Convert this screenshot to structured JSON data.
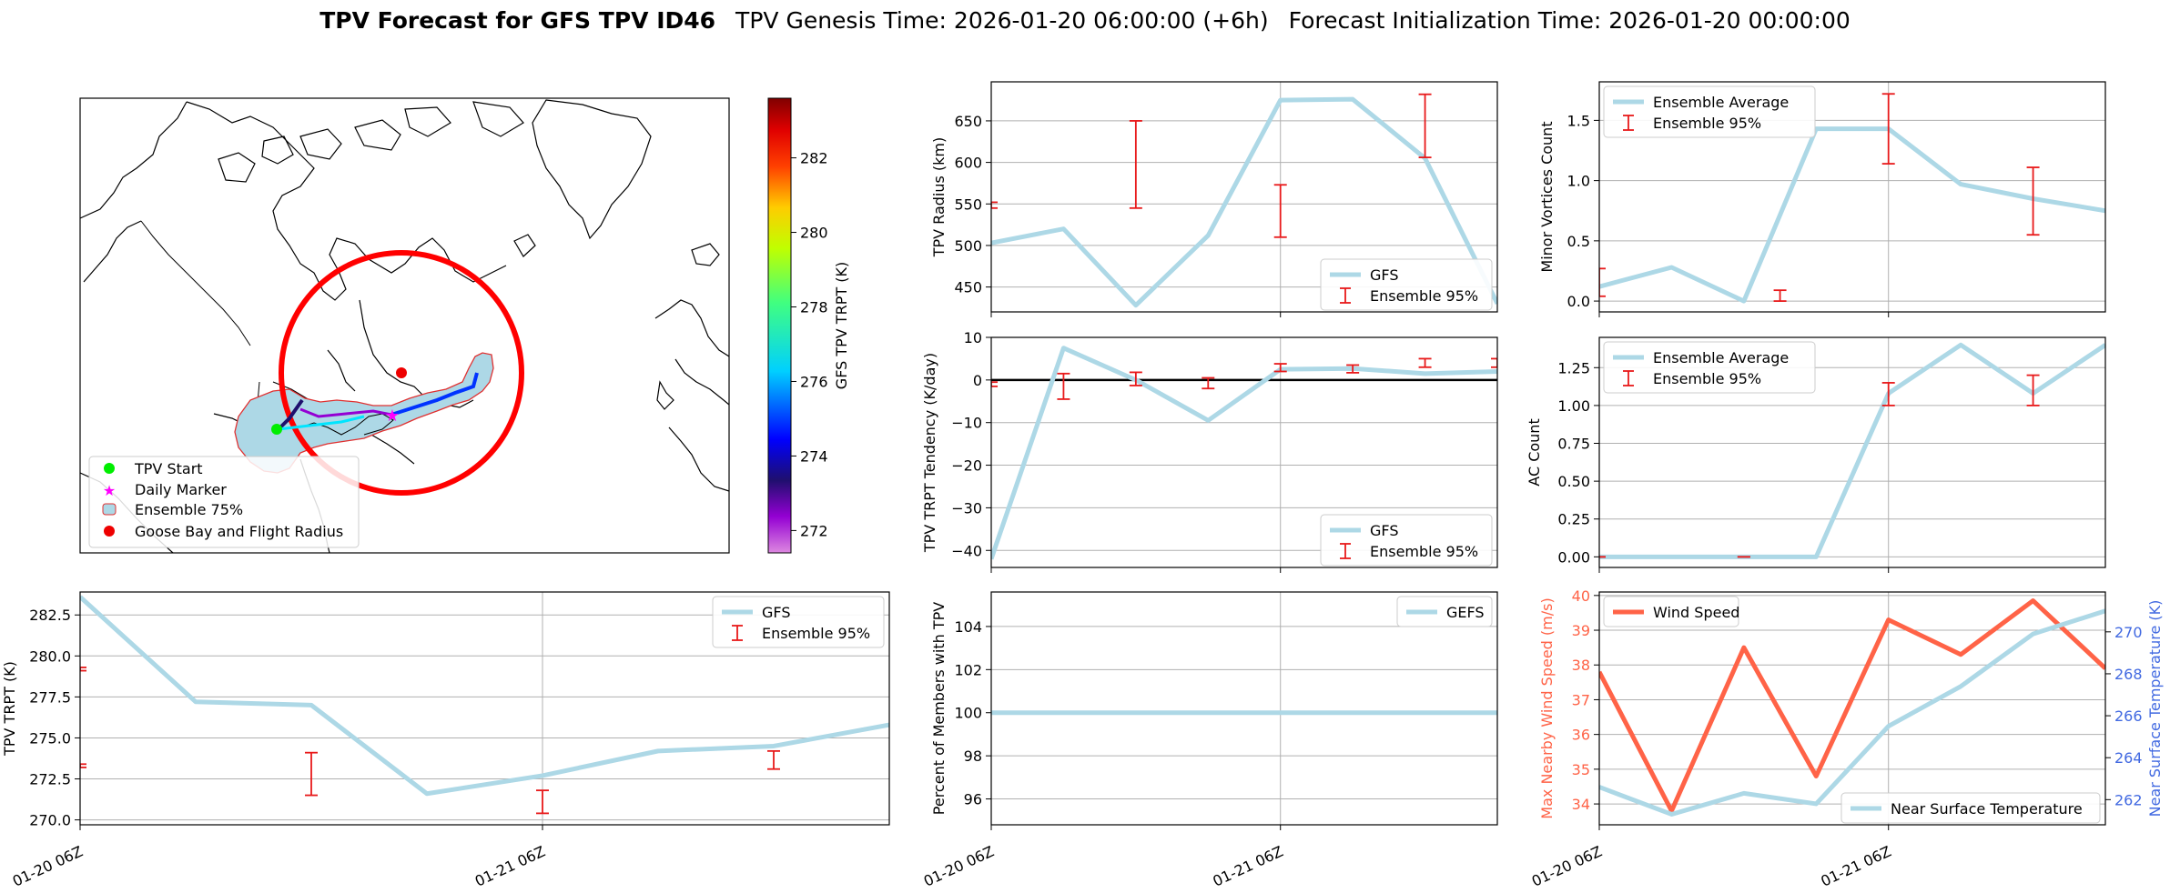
{
  "header": {
    "bold_title": "TPV Forecast for GFS TPV ID46",
    "genesis": "TPV Genesis Time: 2026-01-20 06:00:00 (+6h)",
    "init": "Forecast Initialization Time: 2026-01-20 00:00:00"
  },
  "colors": {
    "gfs": "#add8e6",
    "err": "#e8191a",
    "wind": "#ff6347",
    "temp_axis": "#4169e1",
    "land": "#ffffff",
    "coast": "#000000",
    "ens_fill": "#add8e6",
    "ens_edge": "#e03030"
  },
  "map": {
    "legend": [
      "TPV Start",
      "Daily Marker",
      "Ensemble 75%",
      "Goose Bay and Flight Radius"
    ],
    "colorbar": {
      "label": "GFS TPV TRPT (K)",
      "min": 271.4,
      "max": 283.6,
      "ticks": [
        "272",
        "274",
        "276",
        "278",
        "280",
        "282"
      ]
    }
  },
  "chart_data": [
    {
      "id": "radius",
      "type": "line",
      "title": "",
      "xlabel": "",
      "ylabel": "TPV Radius (km)",
      "x": [
        0,
        1,
        2,
        3,
        4,
        5,
        6,
        7
      ],
      "ylim": [
        420,
        697
      ],
      "xlim": [
        0,
        7
      ],
      "yticks": [
        450,
        500,
        550,
        600,
        650
      ],
      "ytick_labels": [
        "450",
        "500",
        "550",
        "600",
        "650"
      ],
      "xticks": [],
      "xtick_labels": [],
      "vgrid": [
        4
      ],
      "series": [
        {
          "name": "GFS",
          "values": [
            503,
            520,
            428,
            512,
            675,
            676,
            605,
            430
          ]
        }
      ],
      "errorbars": {
        "x": [
          0,
          2,
          4,
          6
        ],
        "low": [
          545,
          545,
          510,
          606
        ],
        "high": [
          552,
          650,
          573,
          682
        ]
      },
      "legend": [
        "GFS",
        "Ensemble 95%"
      ],
      "legend_loc": "lower-right"
    },
    {
      "id": "minor",
      "type": "line",
      "title": "",
      "xlabel": "",
      "ylabel": "Minor Vortices Count",
      "x": [
        0,
        1,
        2,
        3,
        4,
        5,
        6,
        7
      ],
      "ylim": [
        -0.09,
        1.82
      ],
      "xlim": [
        0,
        7
      ],
      "yticks": [
        0,
        0.5,
        1.0,
        1.5
      ],
      "ytick_labels": [
        "0.0",
        "0.5",
        "1.0",
        "1.5"
      ],
      "xticks": [],
      "xtick_labels": [],
      "vgrid": [
        4
      ],
      "series": [
        {
          "name": "Ensemble Average",
          "values": [
            0.12,
            0.28,
            0.0,
            1.43,
            1.43,
            0.97,
            0.85,
            0.75
          ]
        }
      ],
      "errorbars": {
        "x": [
          0,
          2.5,
          4,
          6
        ],
        "low": [
          0.04,
          0.0,
          1.14,
          0.55
        ],
        "high": [
          0.27,
          0.09,
          1.72,
          1.11
        ]
      },
      "legend": [
        "Ensemble Average",
        "Ensemble 95%"
      ],
      "legend_loc": "top-left"
    },
    {
      "id": "tend",
      "type": "line",
      "title": "",
      "xlabel": "",
      "ylabel": "TPV TRPT Tendency (K/day)",
      "x": [
        0,
        1,
        2,
        3,
        4,
        5,
        6,
        7
      ],
      "ylim": [
        -44,
        10
      ],
      "xlim": [
        0,
        7
      ],
      "yticks": [
        -40,
        -30,
        -20,
        -10,
        0,
        10
      ],
      "ytick_labels": [
        "−40",
        "−30",
        "−20",
        "−10",
        "0",
        "10"
      ],
      "xticks": [],
      "xtick_labels": [],
      "vgrid": [
        4
      ],
      "zero_line": true,
      "series": [
        {
          "name": "GFS",
          "values": [
            -42,
            7.5,
            0,
            -9.5,
            2.5,
            2.7,
            1.5,
            2
          ]
        }
      ],
      "errorbars": {
        "x": [
          0,
          1,
          2,
          3,
          4,
          5,
          6,
          7
        ],
        "low": [
          -1.5,
          -4.5,
          -1.3,
          -2,
          2,
          1.7,
          3,
          3
        ],
        "high": [
          -0.5,
          1.5,
          1.8,
          0.5,
          3.8,
          3.5,
          5,
          5
        ]
      },
      "legend": [
        "GFS",
        "Ensemble 95%"
      ],
      "legend_loc": "lower-right"
    },
    {
      "id": "ac",
      "type": "line",
      "title": "",
      "xlabel": "",
      "ylabel": "AC Count",
      "x": [
        0,
        1,
        2,
        3,
        4,
        5,
        6,
        7
      ],
      "ylim": [
        -0.07,
        1.45
      ],
      "xlim": [
        0,
        7
      ],
      "yticks": [
        0,
        0.25,
        0.5,
        0.75,
        1.0,
        1.25
      ],
      "ytick_labels": [
        "0.00",
        "0.25",
        "0.50",
        "0.75",
        "1.00",
        "1.25"
      ],
      "xticks": [],
      "xtick_labels": [],
      "vgrid": [
        4
      ],
      "series": [
        {
          "name": "Ensemble Average",
          "values": [
            0,
            0,
            0,
            0,
            1.08,
            1.4,
            1.08,
            1.4
          ]
        }
      ],
      "errorbars": {
        "x": [
          0,
          2,
          4,
          6
        ],
        "low": [
          0,
          0,
          1.0,
          1.0
        ],
        "high": [
          0,
          0,
          1.15,
          1.2
        ]
      },
      "legend": [
        "Ensemble Average",
        "Ensemble 95%"
      ],
      "legend_loc": "top-left"
    },
    {
      "id": "trpt",
      "type": "line",
      "title": "",
      "xlabel": "",
      "ylabel": "TPV TRPT (K)",
      "x": [
        0,
        1,
        2,
        3,
        4,
        5,
        6,
        7
      ],
      "ylim": [
        269.7,
        283.9
      ],
      "xlim": [
        0,
        7
      ],
      "yticks": [
        270.0,
        272.5,
        275.0,
        277.5,
        280.0,
        282.5
      ],
      "ytick_labels": [
        "270.0",
        "272.5",
        "275.0",
        "277.5",
        "280.0",
        "282.5"
      ],
      "xticks": [
        0,
        4
      ],
      "xtick_labels": [
        "01-20 06Z",
        "01-21 06Z"
      ],
      "vgrid": [
        4
      ],
      "series": [
        {
          "name": "GFS",
          "values": [
            283.6,
            277.2,
            277.0,
            271.6,
            272.7,
            274.2,
            274.5,
            275.8
          ]
        }
      ],
      "errorbars": {
        "x": [
          0,
          0,
          2,
          4,
          6
        ],
        "low": [
          273.2,
          279.1,
          271.5,
          270.4,
          273.1
        ],
        "high": [
          273.4,
          279.3,
          274.1,
          271.8,
          274.2
        ]
      },
      "legend": [
        "GFS",
        "Ensemble 95%"
      ],
      "legend_loc": "top-right"
    },
    {
      "id": "pct",
      "type": "line",
      "title": "",
      "xlabel": "",
      "ylabel": "Percent of Members with TPV",
      "x": [
        0,
        1,
        2,
        3,
        4,
        5,
        6,
        7
      ],
      "ylim": [
        94.8,
        105.6
      ],
      "xlim": [
        0,
        7
      ],
      "yticks": [
        96,
        98,
        100,
        102,
        104
      ],
      "ytick_labels": [
        "96",
        "98",
        "100",
        "102",
        "104"
      ],
      "xticks": [
        0,
        4
      ],
      "xtick_labels": [
        "01-20 06Z",
        "01-21 06Z"
      ],
      "vgrid": [
        4
      ],
      "series": [
        {
          "name": "GEFS",
          "values": [
            100,
            100,
            100,
            100,
            100,
            100,
            100,
            100
          ]
        }
      ],
      "legend": [
        "GEFS"
      ],
      "legend_loc": "top-right"
    },
    {
      "id": "wind",
      "type": "line",
      "title": "",
      "xlabel": "",
      "ylabel": "Max Nearby Wind Speed (m/s)",
      "x": [
        0,
        1,
        2,
        3,
        4,
        5,
        6,
        7
      ],
      "ylim": [
        33.4,
        40.1
      ],
      "xlim": [
        0,
        7
      ],
      "yticks": [
        34,
        35,
        36,
        37,
        38,
        39,
        40
      ],
      "ytick_labels": [
        "34",
        "35",
        "36",
        "37",
        "38",
        "39",
        "40"
      ],
      "xticks": [
        0,
        4
      ],
      "xtick_labels": [
        "01-20 06Z",
        "01-21 06Z"
      ],
      "vgrid": [
        4
      ],
      "series": [
        {
          "name": "Wind Speed",
          "values": [
            37.8,
            33.8,
            38.5,
            34.8,
            39.3,
            38.3,
            39.85,
            37.9
          ]
        },
        {
          "name": "Near Surface Temperature",
          "values": [
            262.6,
            261.3,
            262.3,
            261.8,
            265.5,
            267.4,
            269.9,
            271.0
          ],
          "axis": "right"
        }
      ],
      "y2lim": [
        260.8,
        271.9
      ],
      "y2ticks": [
        262,
        264,
        266,
        268,
        270
      ],
      "y2tick_labels": [
        "262",
        "264",
        "266",
        "268",
        "270"
      ],
      "y2label": "Near Surface Temperature (K)",
      "legend": [
        "Wind Speed",
        "Near Surface Temperature"
      ],
      "legend_loc": "top-left / lower-right"
    }
  ]
}
